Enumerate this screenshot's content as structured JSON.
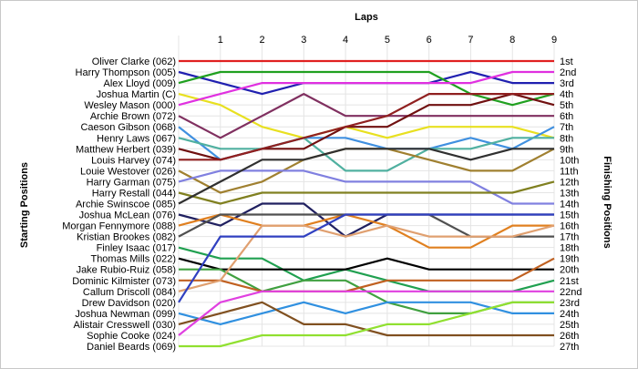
{
  "chart_data": {
    "type": "line",
    "title": "",
    "xlabel": "Laps",
    "ylabel_left": "Starting Positions",
    "ylabel_right": "Finishing Positions",
    "x_ticks": [
      "1",
      "2",
      "3",
      "4",
      "5",
      "6",
      "7",
      "8",
      "9"
    ],
    "x": [
      0,
      1,
      2,
      3,
      4,
      5,
      6,
      7,
      8,
      9
    ],
    "xlim": [
      0,
      9
    ],
    "ylim": [
      1,
      27
    ],
    "y_inverted": true,
    "grid": true,
    "starting_labels": [
      "Oliver Clarke (062)",
      "Harry Thompson (005)",
      "Alex Lloyd (009)",
      "Joshua Martin (C)",
      "Wesley Mason (000)",
      "Archie Brown (072)",
      "Caeson Gibson (068)",
      "Henry Laws (067)",
      "Matthew Herbert (039)",
      "Louis Harvey (074)",
      "Louie Westover (026)",
      "Harry Garman (075)",
      "Harry Restall (044)",
      "Archie Swinscoe (085)",
      "Joshua McLean (076)",
      "Morgan Fennymore (088)",
      "Kristian Brookes (082)",
      "Finley Isaac (017)",
      "Thomas Mills (022)",
      "Jake Rubio-Ruiz (058)",
      "Dominic Kilmister (073)",
      "Callum Driscoll (084)",
      "Drew Davidson (020)",
      "Joshua Newman (099)",
      "Alistair Cresswell (030)",
      "Sophie Cooke (024)",
      "Daniel Beards (069)"
    ],
    "finishing_labels": [
      "1st",
      "2nd",
      "3rd",
      "4th",
      "5th",
      "6th",
      "7th",
      "8th",
      "9th",
      "10th",
      "11th",
      "12th",
      "13th",
      "14th",
      "15th",
      "16th",
      "17th",
      "18th",
      "19th",
      "20th",
      "21st",
      "22nd",
      "23rd",
      "24th",
      "25th",
      "26th",
      "27th"
    ],
    "series": [
      {
        "color": "#e02020",
        "values": [
          1,
          1,
          1,
          1,
          1,
          1,
          1,
          1,
          1,
          1
        ]
      },
      {
        "color": "#2020b0",
        "values": [
          2,
          3,
          4,
          3,
          3,
          3,
          3,
          2,
          3,
          3
        ]
      },
      {
        "color": "#20a020",
        "values": [
          3,
          2,
          2,
          2,
          2,
          2,
          2,
          4,
          5,
          4
        ]
      },
      {
        "color": "#e8e020",
        "values": [
          4,
          5,
          7,
          8,
          7,
          8,
          7,
          7,
          7,
          8
        ]
      },
      {
        "color": "#e030e0",
        "values": [
          5,
          4,
          3,
          3,
          3,
          3,
          3,
          3,
          2,
          2
        ]
      },
      {
        "color": "#803060",
        "values": [
          6,
          8,
          6,
          4,
          6,
          6,
          6,
          6,
          6,
          6
        ]
      },
      {
        "color": "#4090e0",
        "values": [
          7,
          10,
          9,
          8,
          8,
          9,
          9,
          8,
          9,
          7
        ]
      },
      {
        "color": "#50b0a0",
        "values": [
          8,
          9,
          9,
          8,
          11,
          11,
          9,
          9,
          8,
          8
        ]
      },
      {
        "color": "#701010",
        "values": [
          9,
          10,
          9,
          9,
          7,
          7,
          5,
          5,
          4,
          5
        ]
      },
      {
        "color": "#902020",
        "values": [
          10,
          10,
          9,
          8,
          7,
          6,
          4,
          4,
          4,
          4
        ]
      },
      {
        "color": "#a08030",
        "values": [
          11,
          13,
          12,
          10,
          9,
          9,
          10,
          11,
          11,
          9
        ]
      },
      {
        "color": "#8080e0",
        "values": [
          12,
          11,
          11,
          11,
          12,
          12,
          12,
          12,
          14,
          14
        ]
      },
      {
        "color": "#808020",
        "values": [
          13,
          14,
          13,
          13,
          13,
          13,
          13,
          13,
          13,
          12
        ]
      },
      {
        "color": "#303030",
        "values": [
          14,
          12,
          10,
          10,
          9,
          9,
          9,
          10,
          9,
          9
        ]
      },
      {
        "color": "#202060",
        "values": [
          15,
          16,
          14,
          14,
          17,
          15,
          15,
          15,
          15,
          15
        ]
      },
      {
        "color": "#e08020",
        "values": [
          16,
          15,
          16,
          16,
          15,
          16,
          18,
          18,
          16,
          16
        ]
      },
      {
        "color": "#505050",
        "values": [
          17,
          15,
          15,
          15,
          15,
          15,
          15,
          17,
          17,
          17
        ]
      },
      {
        "color": "#20a050",
        "values": [
          18,
          19,
          19,
          21,
          20,
          21,
          22,
          22,
          22,
          21
        ]
      },
      {
        "color": "#000000",
        "values": [
          19,
          20,
          20,
          20,
          20,
          19,
          20,
          20,
          20,
          20
        ]
      },
      {
        "color": "#40a040",
        "values": [
          20,
          20,
          22,
          21,
          21,
          23,
          24,
          24,
          23,
          23
        ]
      },
      {
        "color": "#c06020",
        "values": [
          21,
          21,
          22,
          22,
          22,
          21,
          21,
          21,
          21,
          19
        ]
      },
      {
        "color": "#e0a070",
        "values": [
          22,
          21,
          16,
          16,
          17,
          16,
          17,
          17,
          17,
          16
        ]
      },
      {
        "color": "#3040c0",
        "values": [
          23,
          17,
          17,
          17,
          15,
          15,
          15,
          15,
          15,
          15
        ]
      },
      {
        "color": "#3090e0",
        "values": [
          24,
          25,
          24,
          23,
          24,
          23,
          23,
          23,
          24,
          24
        ]
      },
      {
        "color": "#805020",
        "values": [
          25,
          24,
          23,
          25,
          25,
          26,
          26,
          26,
          26,
          26
        ]
      },
      {
        "color": "#e040e0",
        "values": [
          26,
          23,
          22,
          22,
          22,
          22,
          22,
          22,
          22,
          22
        ]
      },
      {
        "color": "#90e030",
        "values": [
          27,
          27,
          26,
          26,
          26,
          25,
          25,
          24,
          23,
          23
        ]
      }
    ]
  }
}
